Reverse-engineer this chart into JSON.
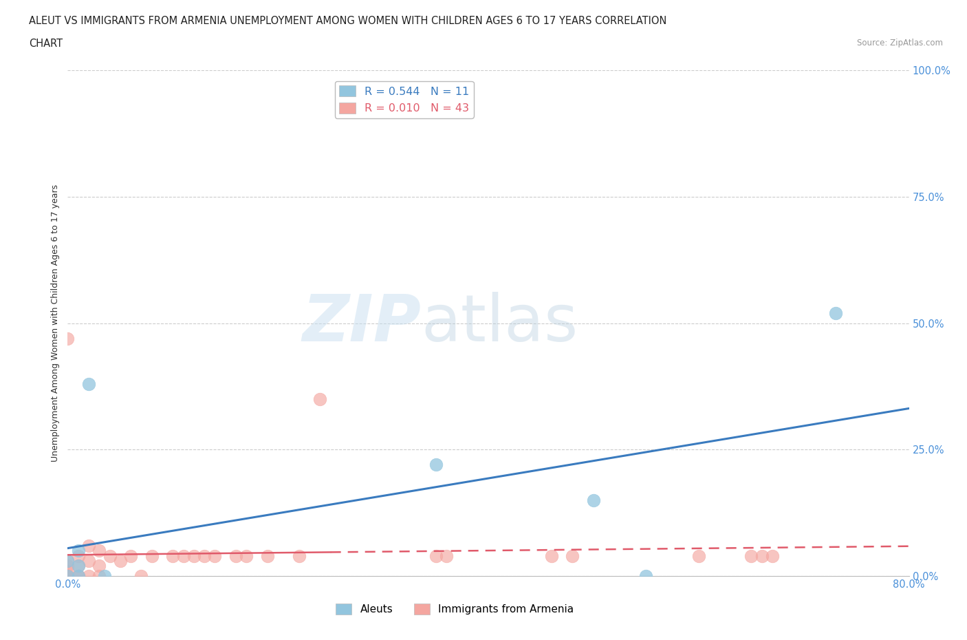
{
  "title_line1": "ALEUT VS IMMIGRANTS FROM ARMENIA UNEMPLOYMENT AMONG WOMEN WITH CHILDREN AGES 6 TO 17 YEARS CORRELATION",
  "title_line2": "CHART",
  "source": "Source: ZipAtlas.com",
  "ylabel": "Unemployment Among Women with Children Ages 6 to 17 years",
  "xlim": [
    0.0,
    0.8
  ],
  "ylim": [
    0.0,
    1.0
  ],
  "xticks": [
    0.0,
    0.1,
    0.2,
    0.3,
    0.4,
    0.5,
    0.6,
    0.7,
    0.8
  ],
  "xticklabels": [
    "0.0%",
    "",
    "",
    "",
    "",
    "",
    "",
    "",
    "80.0%"
  ],
  "yticks": [
    0.0,
    0.25,
    0.5,
    0.75,
    1.0
  ],
  "yticklabels": [
    "0.0%",
    "25.0%",
    "50.0%",
    "75.0%",
    "100.0%"
  ],
  "watermark_zip": "ZIP",
  "watermark_atlas": "atlas",
  "aleuts_R": 0.544,
  "aleuts_N": 11,
  "armenia_R": 0.01,
  "armenia_N": 43,
  "aleuts_color": "#92c5de",
  "armenia_color": "#f4a6a0",
  "aleuts_line_color": "#3a7bbf",
  "armenia_line_solid_color": "#e05a6a",
  "armenia_line_dash_color": "#e05a6a",
  "background_color": "#ffffff",
  "grid_color": "#cccccc",
  "tick_color": "#4a90d9",
  "aleuts_x": [
    0.0,
    0.0,
    0.01,
    0.01,
    0.01,
    0.02,
    0.035,
    0.35,
    0.5,
    0.55,
    0.73
  ],
  "aleuts_y": [
    0.0,
    0.03,
    0.0,
    0.02,
    0.05,
    0.38,
    0.0,
    0.22,
    0.15,
    0.0,
    0.52
  ],
  "armenia_x": [
    0.0,
    0.0,
    0.0,
    0.0,
    0.0,
    0.0,
    0.0,
    0.0,
    0.0,
    0.0,
    0.01,
    0.01,
    0.01,
    0.01,
    0.02,
    0.02,
    0.02,
    0.03,
    0.03,
    0.03,
    0.04,
    0.05,
    0.06,
    0.07,
    0.08,
    0.1,
    0.11,
    0.12,
    0.13,
    0.14,
    0.16,
    0.17,
    0.19,
    0.22,
    0.24,
    0.35,
    0.36,
    0.46,
    0.48,
    0.6,
    0.65,
    0.66,
    0.67
  ],
  "armenia_y": [
    0.0,
    0.0,
    0.0,
    0.0,
    0.0,
    0.0,
    0.01,
    0.02,
    0.03,
    0.47,
    0.0,
    0.0,
    0.02,
    0.04,
    0.0,
    0.03,
    0.06,
    0.0,
    0.02,
    0.05,
    0.04,
    0.03,
    0.04,
    0.0,
    0.04,
    0.04,
    0.04,
    0.04,
    0.04,
    0.04,
    0.04,
    0.04,
    0.04,
    0.04,
    0.35,
    0.04,
    0.04,
    0.04,
    0.04,
    0.04,
    0.04,
    0.04,
    0.04
  ]
}
